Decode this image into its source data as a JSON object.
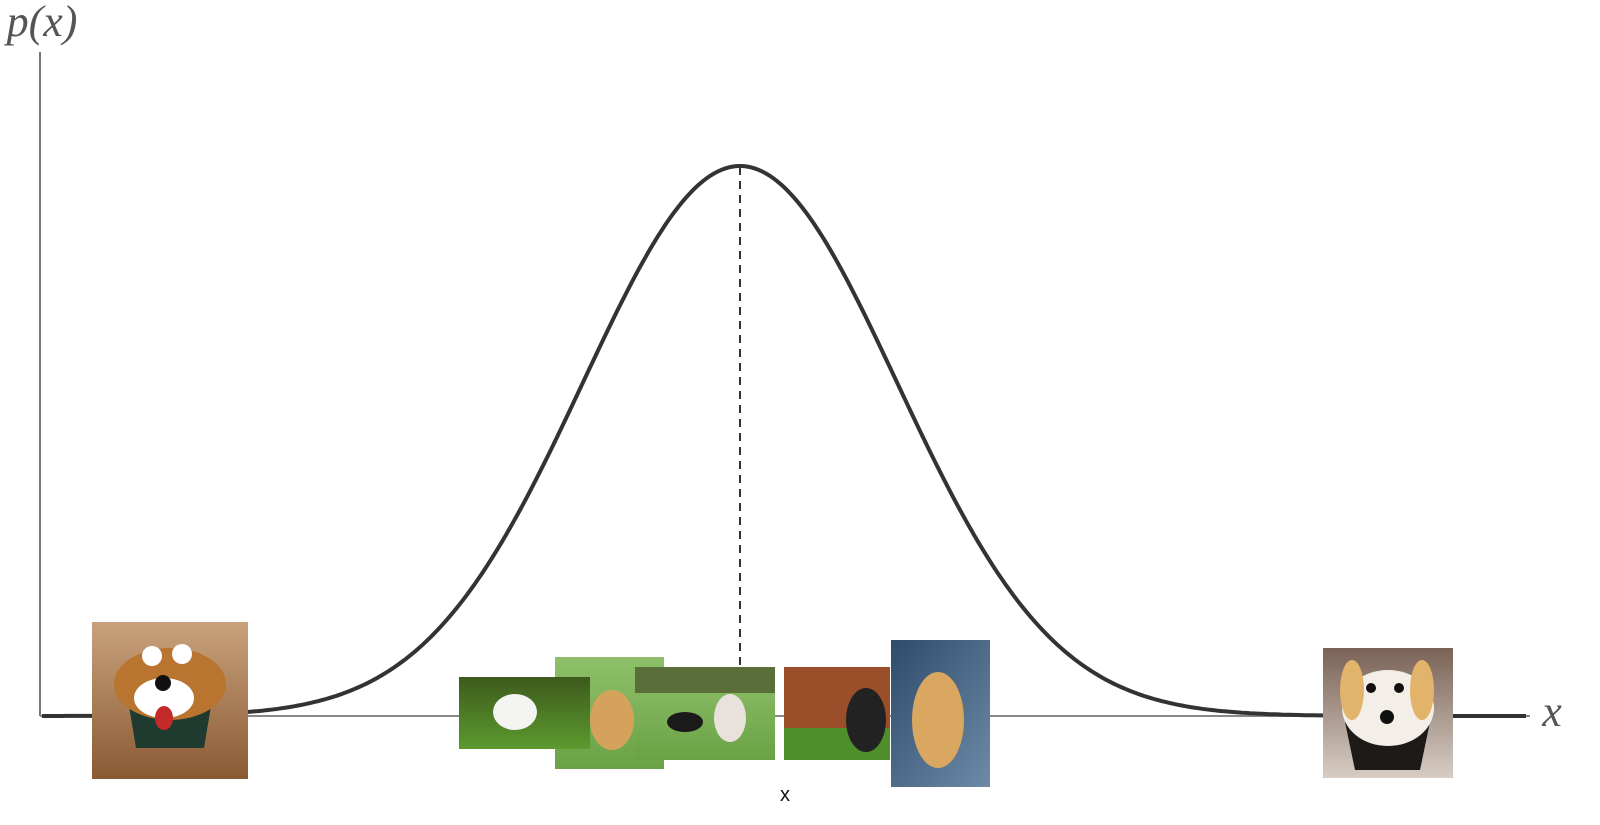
{
  "axis": {
    "y_label": "p(x)",
    "x_label": "x"
  },
  "caption": "x"
}
